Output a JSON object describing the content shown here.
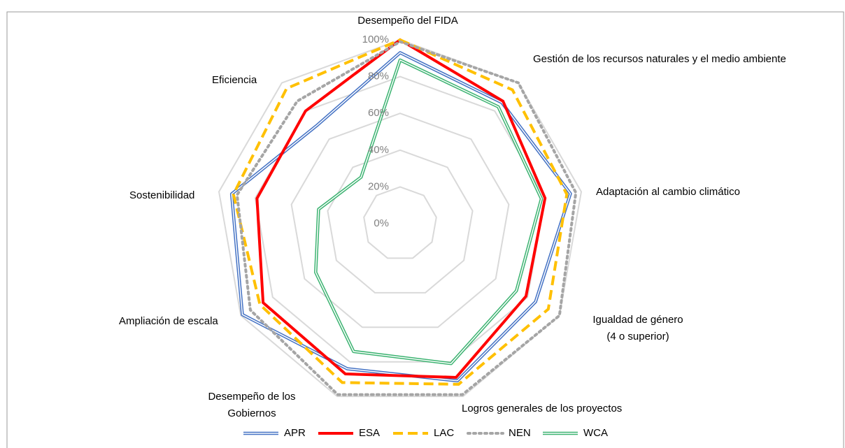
{
  "chart_data": {
    "type": "radar",
    "categories": [
      "Desempeño del FIDA",
      "Gestión de los recursos naturales y el medio ambiente",
      "Adaptación al cambio climático",
      "Igualdad de género\n(4 o superior)",
      "Logros generales de los proyectos",
      "Desempeño de los\nGobiernos",
      "Ampliación de escala",
      "Sostenibilidad",
      "Eficiencia"
    ],
    "series": [
      {
        "name": "APR",
        "color": "#4472c4",
        "line_style": "double",
        "values": [
          93,
          86,
          94,
          85,
          91,
          84,
          99,
          93,
          70
        ]
      },
      {
        "name": "ESA",
        "color": "#ff0000",
        "line_style": "solid",
        "values": [
          100,
          87,
          80,
          79,
          89,
          87,
          86,
          79,
          80
        ]
      },
      {
        "name": "LAC",
        "color": "#ffc000",
        "line_style": "dashed",
        "values": [
          100,
          95,
          92,
          93,
          93,
          92,
          88,
          92,
          96
        ]
      },
      {
        "name": "NEN",
        "color": "#a5a5a5",
        "line_style": "dotted",
        "values": [
          99,
          100,
          97,
          100,
          99,
          99,
          94,
          90,
          87
        ]
      },
      {
        "name": "WCA",
        "color": "#3cb371",
        "line_style": "double",
        "values": [
          89,
          83,
          78,
          73,
          81,
          74,
          53,
          45,
          33
        ]
      }
    ],
    "ylim": [
      0,
      100
    ],
    "yticks": [
      {
        "value": 0,
        "label": "0%"
      },
      {
        "value": 20,
        "label": "20%"
      },
      {
        "value": 40,
        "label": "40%"
      },
      {
        "value": 60,
        "label": "60%"
      },
      {
        "value": 80,
        "label": "80%"
      },
      {
        "value": 100,
        "label": "100%"
      }
    ],
    "grid": true,
    "legend": "bottom"
  }
}
